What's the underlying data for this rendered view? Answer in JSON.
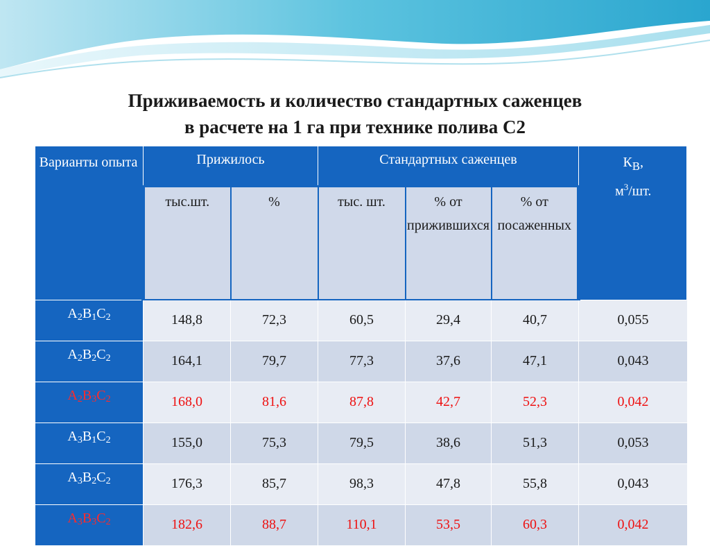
{
  "title": {
    "line1": "Приживаемость и количество стандартных саженцев",
    "line2": "в расчете на 1 га при технике полива С2"
  },
  "table": {
    "header": {
      "variants": "Варианты опыта",
      "survived": "Прижилось",
      "standard": "Стандартных саженцев",
      "kv_label": "К",
      "kv_sub": "В",
      "kv_units": "м",
      "kv_units_sup": "3",
      "kv_units_tail": "/шт."
    },
    "subheader": {
      "survived_thousand": "тыс.шт.",
      "survived_percent": "%",
      "standard_thousand": "тыс. шт.",
      "standard_pct_survived": "% от прижившихся",
      "standard_pct_planted": "% от посаженных"
    },
    "rows": [
      {
        "label_parts": [
          "А",
          "2",
          "В",
          "1",
          "С",
          "2"
        ],
        "highlight": false,
        "values": [
          "148,8",
          "72,3",
          "60,5",
          "29,4",
          "40,7",
          "0,055"
        ]
      },
      {
        "label_parts": [
          "А",
          "2",
          "В",
          "2",
          "С",
          "2"
        ],
        "highlight": false,
        "values": [
          "164,1",
          "79,7",
          "77,3",
          "37,6",
          "47,1",
          "0,043"
        ]
      },
      {
        "label_parts": [
          "А",
          "2",
          "В",
          "3",
          "С",
          "2"
        ],
        "highlight": true,
        "values": [
          "168,0",
          "81,6",
          "87,8",
          "42,7",
          "52,3",
          "0,042"
        ]
      },
      {
        "label_parts": [
          "А",
          "3",
          "В",
          "1",
          "С",
          "2"
        ],
        "highlight": false,
        "values": [
          "155,0",
          "75,3",
          "79,5",
          "38,6",
          "51,3",
          "0,053"
        ]
      },
      {
        "label_parts": [
          "А",
          "3",
          "В",
          "2",
          "С",
          "2"
        ],
        "highlight": false,
        "values": [
          "176,3",
          "85,7",
          "98,3",
          "47,8",
          "55,8",
          "0,043"
        ]
      },
      {
        "label_parts": [
          "А",
          "3",
          "В",
          "3",
          "С",
          "2"
        ],
        "highlight": true,
        "values": [
          "182,6",
          "88,7",
          "110,1",
          "53,5",
          "60,3",
          "0,042"
        ]
      }
    ]
  },
  "colors": {
    "header_blue": "#1565c0",
    "highlight_red": "#ee1111",
    "row_light": "#e8ecf4",
    "row_dark": "#cfd8e8"
  }
}
